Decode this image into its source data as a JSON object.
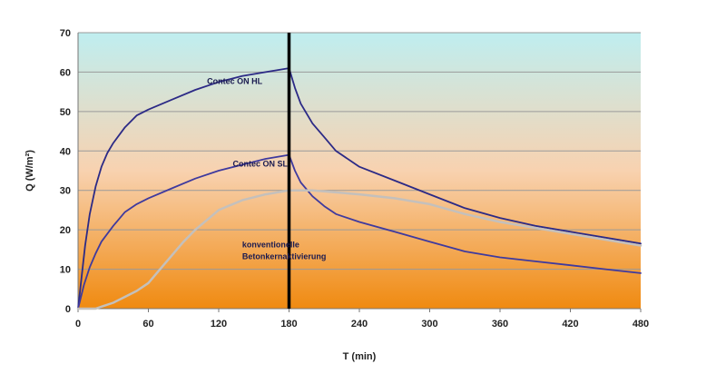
{
  "chart_data": {
    "type": "line",
    "title": "",
    "xlabel": "T (min)",
    "ylabel": "Q (W/m²)",
    "xlim": [
      0,
      480
    ],
    "ylim": [
      0,
      70
    ],
    "xticks": [
      0,
      60,
      120,
      180,
      240,
      300,
      360,
      420,
      480
    ],
    "yticks": [
      0,
      10,
      20,
      30,
      40,
      50,
      60,
      70
    ],
    "grid": "horizontal",
    "background_gradient": [
      "#bfeef0",
      "#f8d2b0",
      "#f08a10"
    ],
    "vertical_marker": {
      "x": 180,
      "color": "#000000"
    },
    "series": [
      {
        "name": "Contec ON HL",
        "color": "#2c2a86",
        "x": [
          0,
          3,
          6,
          10,
          15,
          20,
          25,
          30,
          40,
          50,
          60,
          80,
          100,
          120,
          140,
          160,
          180,
          185,
          190,
          200,
          210,
          220,
          240,
          270,
          300,
          330,
          360,
          390,
          420,
          450,
          480
        ],
        "y": [
          0,
          8,
          16,
          24,
          31,
          36,
          39.5,
          42,
          46,
          49,
          50.5,
          53,
          55.5,
          57.5,
          59,
          60,
          61,
          56,
          52,
          47,
          43.5,
          40,
          36,
          32.5,
          29,
          25.5,
          23,
          21,
          19.5,
          18,
          16.5
        ]
      },
      {
        "name": "Contec ON SL",
        "color": "#3f3a9e",
        "x": [
          0,
          5,
          10,
          15,
          20,
          30,
          40,
          50,
          60,
          80,
          100,
          120,
          140,
          160,
          180,
          185,
          190,
          200,
          210,
          220,
          240,
          270,
          300,
          330,
          360,
          390,
          420,
          450,
          480
        ],
        "y": [
          0,
          6,
          10.5,
          14,
          17,
          21,
          24.5,
          26.5,
          28,
          30.5,
          33,
          35,
          36.5,
          38,
          39,
          35,
          32,
          28.5,
          26,
          24,
          22,
          19.5,
          17,
          14.5,
          13,
          12,
          11,
          10,
          9
        ]
      },
      {
        "name": "konventionelle Betonkernaktivierung",
        "color": "#c4c0bc",
        "x": [
          0,
          15,
          20,
          30,
          40,
          50,
          60,
          70,
          80,
          90,
          100,
          110,
          120,
          140,
          160,
          180,
          200,
          220,
          240,
          270,
          300,
          330,
          360,
          390,
          420,
          450,
          480
        ],
        "y": [
          0,
          0,
          0.5,
          1.5,
          3,
          4.5,
          6.5,
          10,
          13.5,
          17,
          20,
          22.5,
          25,
          27.5,
          29,
          30,
          30,
          29.5,
          29,
          28,
          26.5,
          24,
          22,
          20.5,
          19,
          17.5,
          16
        ]
      }
    ],
    "annotations": [
      {
        "text": "Contec ON HL",
        "x": 110,
        "y": 57
      },
      {
        "text": "Contec ON SL",
        "x": 132,
        "y": 36
      },
      {
        "text": "konventionelle",
        "x": 140,
        "y": 15.5
      },
      {
        "text": "Betonkernaktivierung",
        "x": 140,
        "y": 12.5
      }
    ]
  }
}
